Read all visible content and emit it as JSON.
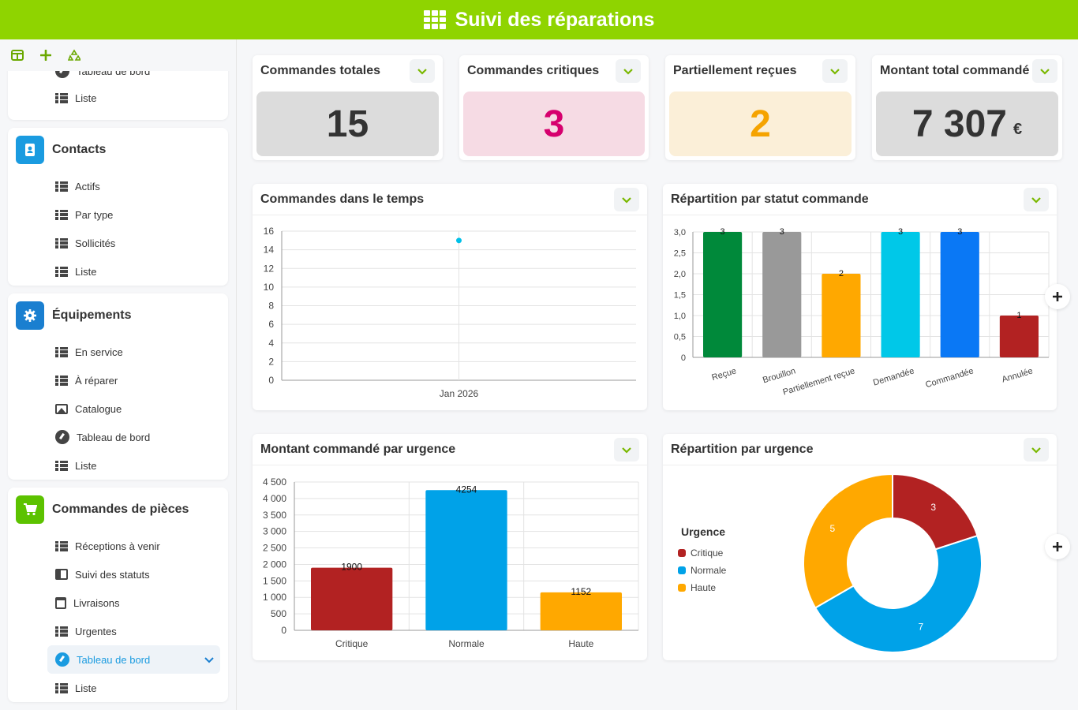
{
  "header": {
    "title": "Suivi des réparations"
  },
  "sidebar": {
    "partial_top": {
      "hidden_label": "Tableau de bord",
      "item_label": "Liste"
    },
    "sections": [
      {
        "title": "Contacts",
        "color": "#1a9be0",
        "items": [
          "Actifs",
          "Par type",
          "Sollicités",
          "Liste"
        ]
      },
      {
        "title": "Équipements",
        "color": "#1a7fd0",
        "items": [
          "En service",
          "À réparer",
          "Catalogue",
          "Tableau de bord",
          "Liste"
        ]
      },
      {
        "title": "Commandes de pièces",
        "color": "#5cc200",
        "items": [
          "Réceptions à venir",
          "Suivi des statuts",
          "Livraisons",
          "Urgentes",
          "Tableau de bord",
          "Liste"
        ],
        "active_item": "Tableau de bord"
      }
    ]
  },
  "kpis": [
    {
      "title": "Commandes totales",
      "value": "15",
      "unit": "",
      "bg": "#dcdcdc",
      "color": "#333333"
    },
    {
      "title": "Commandes critiques",
      "value": "3",
      "unit": "",
      "bg": "#f6dbe4",
      "color": "#d6006e"
    },
    {
      "title": "Partiellement reçues",
      "value": "2",
      "unit": "",
      "bg": "#fbefd8",
      "color": "#f5a300"
    },
    {
      "title": "Montant total commandé",
      "value": "7 307",
      "unit": "€",
      "bg": "#dcdcdc",
      "color": "#333333"
    }
  ],
  "charts": {
    "timeline": {
      "title": "Commandes dans le temps"
    },
    "status": {
      "title": "Répartition par statut commande"
    },
    "amount": {
      "title": "Montant commandé par urgence"
    },
    "urgency": {
      "title": "Répartition par urgence",
      "legend_title": "Urgence"
    }
  },
  "chart_data": [
    {
      "type": "line",
      "title": "Commandes dans le temps",
      "x": [
        "Jan 2026"
      ],
      "series": [
        {
          "values": [
            15
          ]
        }
      ],
      "ylim": [
        0,
        16
      ],
      "yticks": [
        0,
        2,
        4,
        6,
        8,
        10,
        12,
        14,
        16
      ],
      "color": "#00c0e8",
      "grid": true
    },
    {
      "type": "bar",
      "title": "Répartition par statut commande",
      "categories": [
        "Reçue",
        "Brouillon",
        "Partiellement reçue",
        "Demandée",
        "Commandée",
        "Annulée"
      ],
      "values": [
        3,
        3,
        2,
        3,
        3,
        1
      ],
      "colors": [
        "#00893a",
        "#999999",
        "#ffa800",
        "#00c8e8",
        "#0a78f5",
        "#b22222"
      ],
      "ylim": [
        0,
        3
      ],
      "yticks": [
        "0",
        "0,5",
        "1,0",
        "1,5",
        "2,0",
        "2,5",
        "3,0"
      ],
      "grid": true
    },
    {
      "type": "bar",
      "title": "Montant commandé par urgence",
      "categories": [
        "Critique",
        "Normale",
        "Haute"
      ],
      "values": [
        1900,
        4254,
        1152
      ],
      "colors": [
        "#b22222",
        "#00a2e8",
        "#ffa800"
      ],
      "ylim": [
        0,
        4500
      ],
      "yticks": [
        "0",
        "500",
        "1 000",
        "1 500",
        "2 000",
        "2 500",
        "3 000",
        "3 500",
        "4 000",
        "4 500"
      ],
      "grid": true
    },
    {
      "type": "pie",
      "title": "Répartition par urgence",
      "categories": [
        "Critique",
        "Normale",
        "Haute"
      ],
      "values": [
        3,
        7,
        5
      ],
      "colors": [
        "#b22222",
        "#00a2e8",
        "#ffa800"
      ],
      "legend": "left"
    }
  ]
}
